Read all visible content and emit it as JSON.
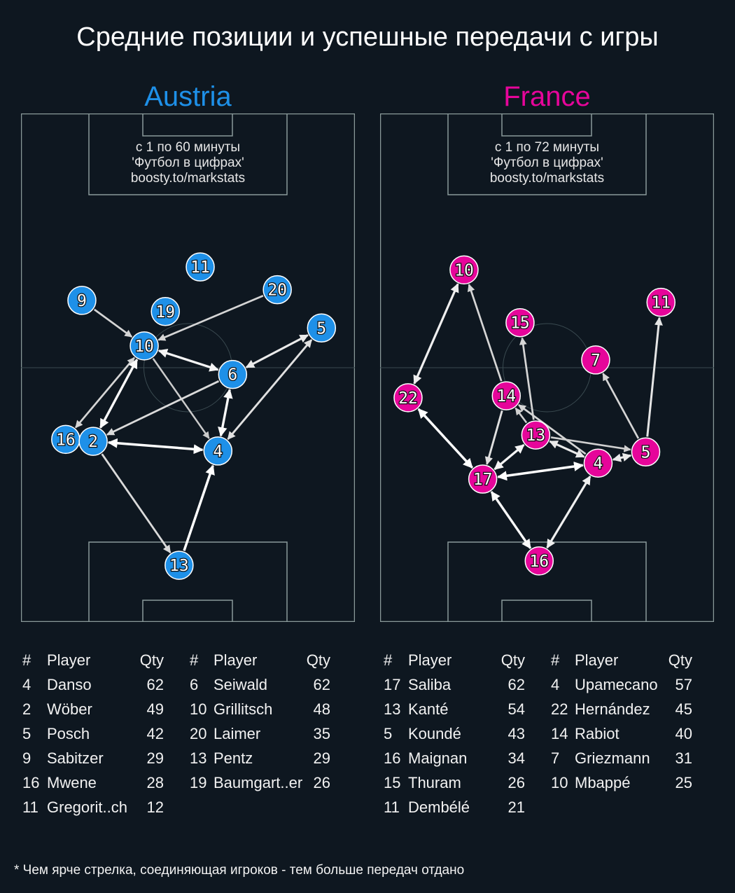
{
  "title": "Средние позиции и успешные передачи с игры",
  "footnote": "* Чем ярче стрелка, соединяющая игроков - тем больше передач отдано",
  "pitch_units": "meters (68 x 105)",
  "teams": [
    {
      "name": "Austria",
      "color": "#1e90e8",
      "note": [
        "с 1 по 60 минуты",
        "'Футбол в цифрах'",
        "boosty.to/markstats"
      ],
      "players": [
        {
          "n": "11",
          "x": 36.5,
          "y": 73.3
        },
        {
          "n": "20",
          "x": 52.2,
          "y": 68.6
        },
        {
          "n": "9",
          "x": 12.4,
          "y": 66.4
        },
        {
          "n": "19",
          "x": 29.4,
          "y": 64.1
        },
        {
          "n": "10",
          "x": 25.1,
          "y": 57.0
        },
        {
          "n": "5",
          "x": 61.2,
          "y": 60.7
        },
        {
          "n": "6",
          "x": 43.1,
          "y": 51.1
        },
        {
          "n": "16",
          "x": 9.1,
          "y": 37.7
        },
        {
          "n": "2",
          "x": 14.7,
          "y": 37.3
        },
        {
          "n": "4",
          "x": 40.1,
          "y": 35.3
        },
        {
          "n": "13",
          "x": 32.2,
          "y": 11.7
        }
      ],
      "passes": [
        {
          "from": "9",
          "to": "10",
          "both": false,
          "intensity": 0.6
        },
        {
          "from": "20",
          "to": "10",
          "both": false,
          "intensity": 0.6
        },
        {
          "from": "10",
          "to": "6",
          "both": true,
          "intensity": 0.9
        },
        {
          "from": "6",
          "to": "5",
          "both": true,
          "intensity": 0.8
        },
        {
          "from": "4",
          "to": "5",
          "both": true,
          "intensity": 0.7
        },
        {
          "from": "10",
          "to": "4",
          "both": false,
          "intensity": 0.5
        },
        {
          "from": "6",
          "to": "2",
          "both": false,
          "intensity": 0.65
        },
        {
          "from": "10",
          "to": "16",
          "both": true,
          "intensity": 0.6
        },
        {
          "from": "10",
          "to": "2",
          "both": true,
          "intensity": 0.95
        },
        {
          "from": "2",
          "to": "4",
          "both": true,
          "intensity": 1.0
        },
        {
          "from": "4",
          "to": "6",
          "both": true,
          "intensity": 0.95
        },
        {
          "from": "2",
          "to": "13",
          "both": false,
          "intensity": 0.65
        },
        {
          "from": "13",
          "to": "4",
          "both": false,
          "intensity": 1.0
        }
      ],
      "table_headers": [
        "#",
        "Player",
        "Qty"
      ],
      "table": [
        [
          [
            "4",
            "Danso",
            "62"
          ],
          [
            "2",
            "Wöber",
            "49"
          ],
          [
            "5",
            "Posch",
            "42"
          ],
          [
            "9",
            "Sabitzer",
            "29"
          ],
          [
            "16",
            "Mwene",
            "28"
          ],
          [
            "11",
            "Gregorit..ch",
            "12"
          ]
        ],
        [
          [
            "6",
            "Seiwald",
            "62"
          ],
          [
            "10",
            "Grillitsch",
            "48"
          ],
          [
            "20",
            "Laimer",
            "35"
          ],
          [
            "13",
            "Pentz",
            "29"
          ],
          [
            "19",
            "Baumgart..er",
            "26"
          ]
        ]
      ]
    },
    {
      "name": "France",
      "color": "#e6059a",
      "note": [
        "с 1 по 72 минуты",
        "'Футбол в цифрах'",
        "boosty.to/markstats"
      ],
      "players": [
        {
          "n": "10",
          "x": 17.1,
          "y": 72.7
        },
        {
          "n": "11",
          "x": 57.2,
          "y": 66.0
        },
        {
          "n": "15",
          "x": 28.5,
          "y": 61.8
        },
        {
          "n": "7",
          "x": 43.9,
          "y": 54.1
        },
        {
          "n": "22",
          "x": 5.7,
          "y": 46.3
        },
        {
          "n": "14",
          "x": 25.7,
          "y": 46.7
        },
        {
          "n": "13",
          "x": 31.7,
          "y": 38.6
        },
        {
          "n": "5",
          "x": 54.1,
          "y": 35.1
        },
        {
          "n": "4",
          "x": 44.4,
          "y": 32.8
        },
        {
          "n": "17",
          "x": 20.9,
          "y": 29.5
        },
        {
          "n": "16",
          "x": 32.4,
          "y": 12.6
        }
      ],
      "passes": [
        {
          "from": "22",
          "to": "10",
          "both": true,
          "intensity": 0.85
        },
        {
          "from": "14",
          "to": "10",
          "both": false,
          "intensity": 0.6
        },
        {
          "from": "13",
          "to": "15",
          "both": false,
          "intensity": 0.6
        },
        {
          "from": "5",
          "to": "7",
          "both": false,
          "intensity": 0.6
        },
        {
          "from": "5",
          "to": "11",
          "both": false,
          "intensity": 0.75
        },
        {
          "from": "22",
          "to": "17",
          "both": true,
          "intensity": 1.0
        },
        {
          "from": "14",
          "to": "17",
          "both": false,
          "intensity": 0.7
        },
        {
          "from": "17",
          "to": "13",
          "both": true,
          "intensity": 0.9
        },
        {
          "from": "4",
          "to": "14",
          "both": false,
          "intensity": 0.6
        },
        {
          "from": "13",
          "to": "14",
          "both": false,
          "intensity": 0.55
        },
        {
          "from": "13",
          "to": "5",
          "both": false,
          "intensity": 0.55
        },
        {
          "from": "4",
          "to": "13",
          "both": true,
          "intensity": 0.8
        },
        {
          "from": "4",
          "to": "5",
          "both": true,
          "intensity": 0.8
        },
        {
          "from": "17",
          "to": "4",
          "both": true,
          "intensity": 1.0
        },
        {
          "from": "17",
          "to": "16",
          "both": true,
          "intensity": 0.95
        },
        {
          "from": "4",
          "to": "16",
          "both": true,
          "intensity": 0.85
        }
      ],
      "table_headers": [
        "#",
        "Player",
        "Qty"
      ],
      "table": [
        [
          [
            "17",
            "Saliba",
            "62"
          ],
          [
            "13",
            "Kanté",
            "54"
          ],
          [
            "5",
            "Koundé",
            "43"
          ],
          [
            "16",
            "Maignan",
            "34"
          ],
          [
            "15",
            "Thuram",
            "26"
          ],
          [
            "11",
            "Dembélé",
            "21"
          ]
        ],
        [
          [
            "4",
            "Upamecano",
            "57"
          ],
          [
            "22",
            "Hernández",
            "45"
          ],
          [
            "14",
            "Rabiot",
            "40"
          ],
          [
            "7",
            "Griezmann",
            "31"
          ],
          [
            "10",
            "Mbappé",
            "25"
          ]
        ]
      ]
    }
  ]
}
